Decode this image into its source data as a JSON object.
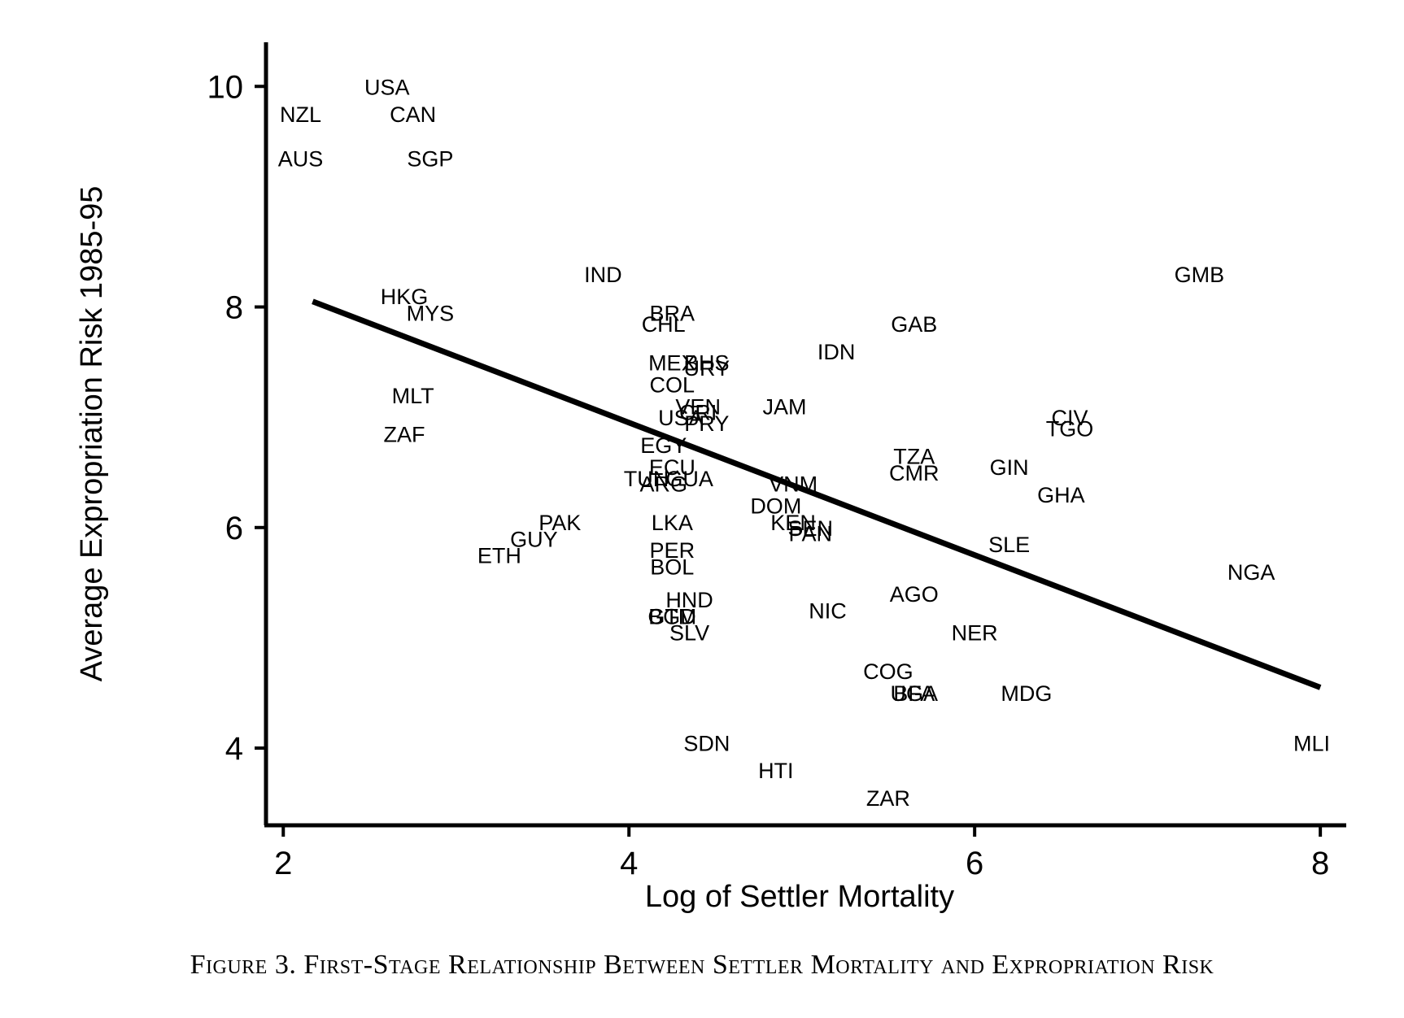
{
  "chart_data": {
    "type": "scatter",
    "title": "",
    "xlabel": "Log of Settler Mortality",
    "ylabel": "Average Expropriation Risk 1985-95",
    "xlim": [
      1.9,
      8.15
    ],
    "ylim": [
      3.3,
      10.4
    ],
    "xticks": [
      2,
      4,
      6,
      8
    ],
    "yticks": [
      4,
      6,
      8,
      10
    ],
    "grid": false,
    "legend": "none",
    "points": [
      {
        "label": "USA",
        "x": 2.6,
        "y": 10.0
      },
      {
        "label": "NZL",
        "x": 2.1,
        "y": 9.75
      },
      {
        "label": "CAN",
        "x": 2.75,
        "y": 9.75
      },
      {
        "label": "AUS",
        "x": 2.1,
        "y": 9.35
      },
      {
        "label": "SGP",
        "x": 2.85,
        "y": 9.35
      },
      {
        "label": "HKG",
        "x": 2.7,
        "y": 8.1
      },
      {
        "label": "MYS",
        "x": 2.85,
        "y": 7.95
      },
      {
        "label": "MLT",
        "x": 2.75,
        "y": 7.2
      },
      {
        "label": "ZAF",
        "x": 2.7,
        "y": 6.85
      },
      {
        "label": "IND",
        "x": 3.85,
        "y": 8.3
      },
      {
        "label": "GMB",
        "x": 7.3,
        "y": 8.3
      },
      {
        "label": "BRA",
        "x": 4.25,
        "y": 7.95
      },
      {
        "label": "CHL",
        "x": 4.2,
        "y": 7.85
      },
      {
        "label": "GAB",
        "x": 5.65,
        "y": 7.85
      },
      {
        "label": "IDN",
        "x": 5.2,
        "y": 7.6
      },
      {
        "label": "MEX",
        "x": 4.25,
        "y": 7.5
      },
      {
        "label": "BHS",
        "x": 4.45,
        "y": 7.5
      },
      {
        "label": "URY",
        "x": 4.45,
        "y": 7.45
      },
      {
        "label": "COL",
        "x": 4.25,
        "y": 7.3
      },
      {
        "label": "VEN",
        "x": 4.4,
        "y": 7.1
      },
      {
        "label": "CRI",
        "x": 4.4,
        "y": 7.05
      },
      {
        "label": "JAM",
        "x": 4.9,
        "y": 7.1
      },
      {
        "label": "USA",
        "x": 4.3,
        "y": 7.0
      },
      {
        "label": "PRY",
        "x": 4.45,
        "y": 6.95
      },
      {
        "label": "CIV",
        "x": 6.55,
        "y": 7.0
      },
      {
        "label": "TGO",
        "x": 6.55,
        "y": 6.9
      },
      {
        "label": "EGY",
        "x": 4.2,
        "y": 6.75
      },
      {
        "label": "TZA",
        "x": 5.65,
        "y": 6.65
      },
      {
        "label": "GIN",
        "x": 6.2,
        "y": 6.55
      },
      {
        "label": "CMR",
        "x": 5.65,
        "y": 6.5
      },
      {
        "label": "ECU",
        "x": 4.25,
        "y": 6.55
      },
      {
        "label": "TUN",
        "x": 4.1,
        "y": 6.45
      },
      {
        "label": "GUA",
        "x": 4.35,
        "y": 6.45
      },
      {
        "label": "ARG",
        "x": 4.2,
        "y": 6.4
      },
      {
        "label": "VNM",
        "x": 4.95,
        "y": 6.4
      },
      {
        "label": "GHA",
        "x": 6.5,
        "y": 6.3
      },
      {
        "label": "DOM",
        "x": 4.85,
        "y": 6.2
      },
      {
        "label": "PAK",
        "x": 3.6,
        "y": 6.05
      },
      {
        "label": "LKA",
        "x": 4.25,
        "y": 6.05
      },
      {
        "label": "KEN",
        "x": 4.95,
        "y": 6.05
      },
      {
        "label": "SEN",
        "x": 5.05,
        "y": 6.0
      },
      {
        "label": "PAN",
        "x": 5.05,
        "y": 5.95
      },
      {
        "label": "GUY",
        "x": 3.45,
        "y": 5.9
      },
      {
        "label": "SLE",
        "x": 6.2,
        "y": 5.85
      },
      {
        "label": "ETH",
        "x": 3.25,
        "y": 5.75
      },
      {
        "label": "PER",
        "x": 4.25,
        "y": 5.8
      },
      {
        "label": "BOL",
        "x": 4.25,
        "y": 5.65
      },
      {
        "label": "NGA",
        "x": 7.6,
        "y": 5.6
      },
      {
        "label": "AGO",
        "x": 5.65,
        "y": 5.4
      },
      {
        "label": "HND",
        "x": 4.35,
        "y": 5.35
      },
      {
        "label": "NIC",
        "x": 5.15,
        "y": 5.25
      },
      {
        "label": "GTM",
        "x": 4.25,
        "y": 5.2
      },
      {
        "label": "BGD",
        "x": 4.25,
        "y": 5.2
      },
      {
        "label": "SLV",
        "x": 4.35,
        "y": 5.05
      },
      {
        "label": "NER",
        "x": 6.0,
        "y": 5.05
      },
      {
        "label": "COG",
        "x": 5.5,
        "y": 4.7
      },
      {
        "label": "BFA",
        "x": 5.65,
        "y": 4.5
      },
      {
        "label": "UGA",
        "x": 5.65,
        "y": 4.5
      },
      {
        "label": "MDG",
        "x": 6.3,
        "y": 4.5
      },
      {
        "label": "SDN",
        "x": 4.45,
        "y": 4.05
      },
      {
        "label": "MLI",
        "x": 7.95,
        "y": 4.05
      },
      {
        "label": "HTI",
        "x": 4.85,
        "y": 3.8
      },
      {
        "label": "ZAR",
        "x": 5.5,
        "y": 3.55
      }
    ],
    "fit_line": {
      "x": [
        2.17,
        8.0
      ],
      "y": [
        8.05,
        4.55
      ]
    }
  },
  "caption": "Figure 3. First-Stage Relationship Between Settler Mortality and Expropriation Risk"
}
